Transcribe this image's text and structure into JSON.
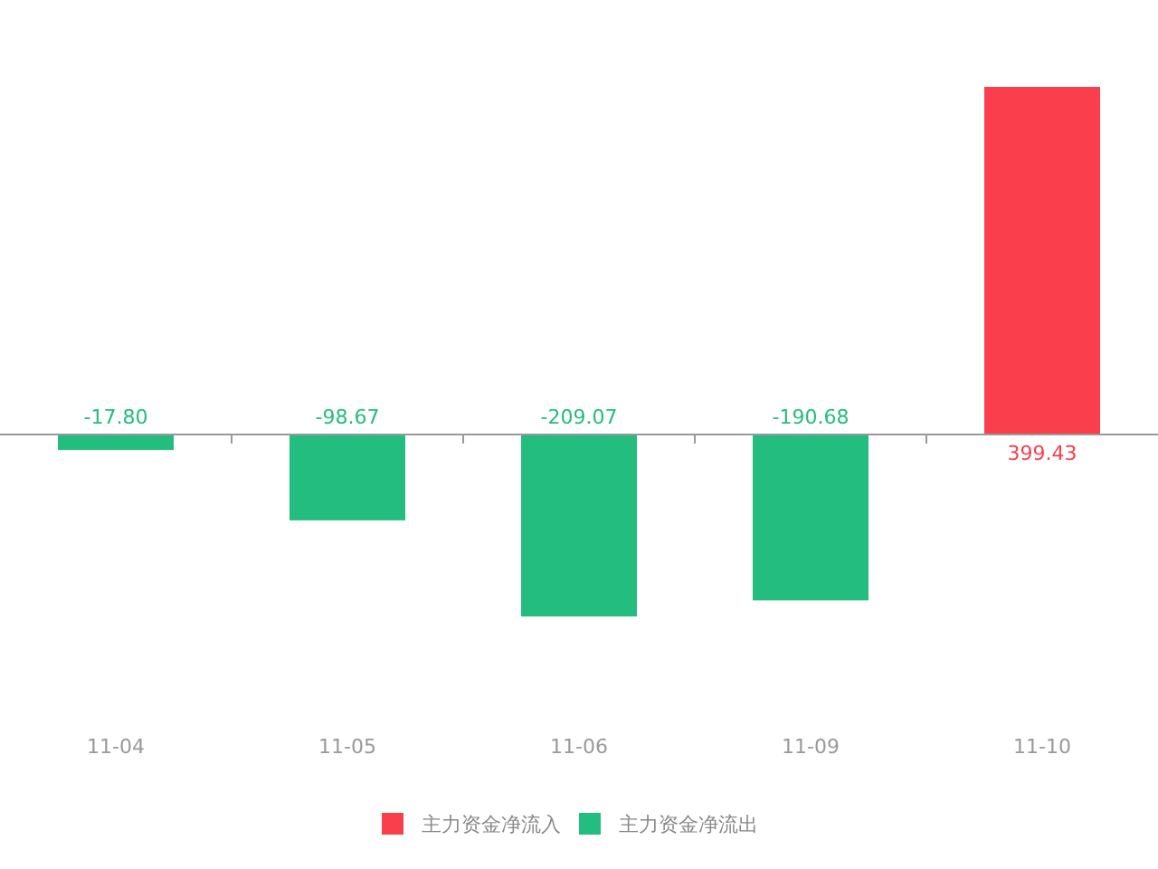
{
  "chart_data": {
    "type": "bar",
    "categories": [
      "11-04",
      "11-05",
      "11-06",
      "11-09",
      "11-10"
    ],
    "series": [
      {
        "name": "主力资金净流入",
        "color": "#fa3e4b",
        "values": [
          null,
          null,
          null,
          null,
          399.43
        ],
        "value_labels": [
          null,
          null,
          null,
          null,
          "399.43"
        ]
      },
      {
        "name": "主力资金净流出",
        "color": "#22bd7f",
        "values": [
          -17.8,
          -98.67,
          -209.07,
          -190.68,
          null
        ],
        "value_labels": [
          "-17.80",
          "-98.67",
          "-209.07",
          "-190.68",
          null
        ]
      }
    ],
    "stacked": true,
    "legend": "bottom",
    "tick_labels": "x"
  }
}
